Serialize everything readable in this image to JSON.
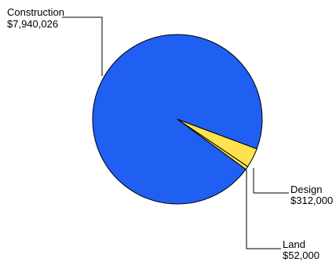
{
  "colors": {
    "background": "#ffffff",
    "outline": "#000000"
  },
  "chart_data": {
    "type": "pie",
    "title": "",
    "legend": "none",
    "slices": [
      {
        "label": "Construction",
        "value": 7940026,
        "value_label": "$7,940,026",
        "color": "#1f5ff2"
      },
      {
        "label": "Design",
        "value": 312000,
        "value_label": "$312,000",
        "color": "#ffe24d"
      },
      {
        "label": "Land",
        "value": 52000,
        "value_label": "$52,000",
        "color": "#ffe24d"
      }
    ]
  }
}
